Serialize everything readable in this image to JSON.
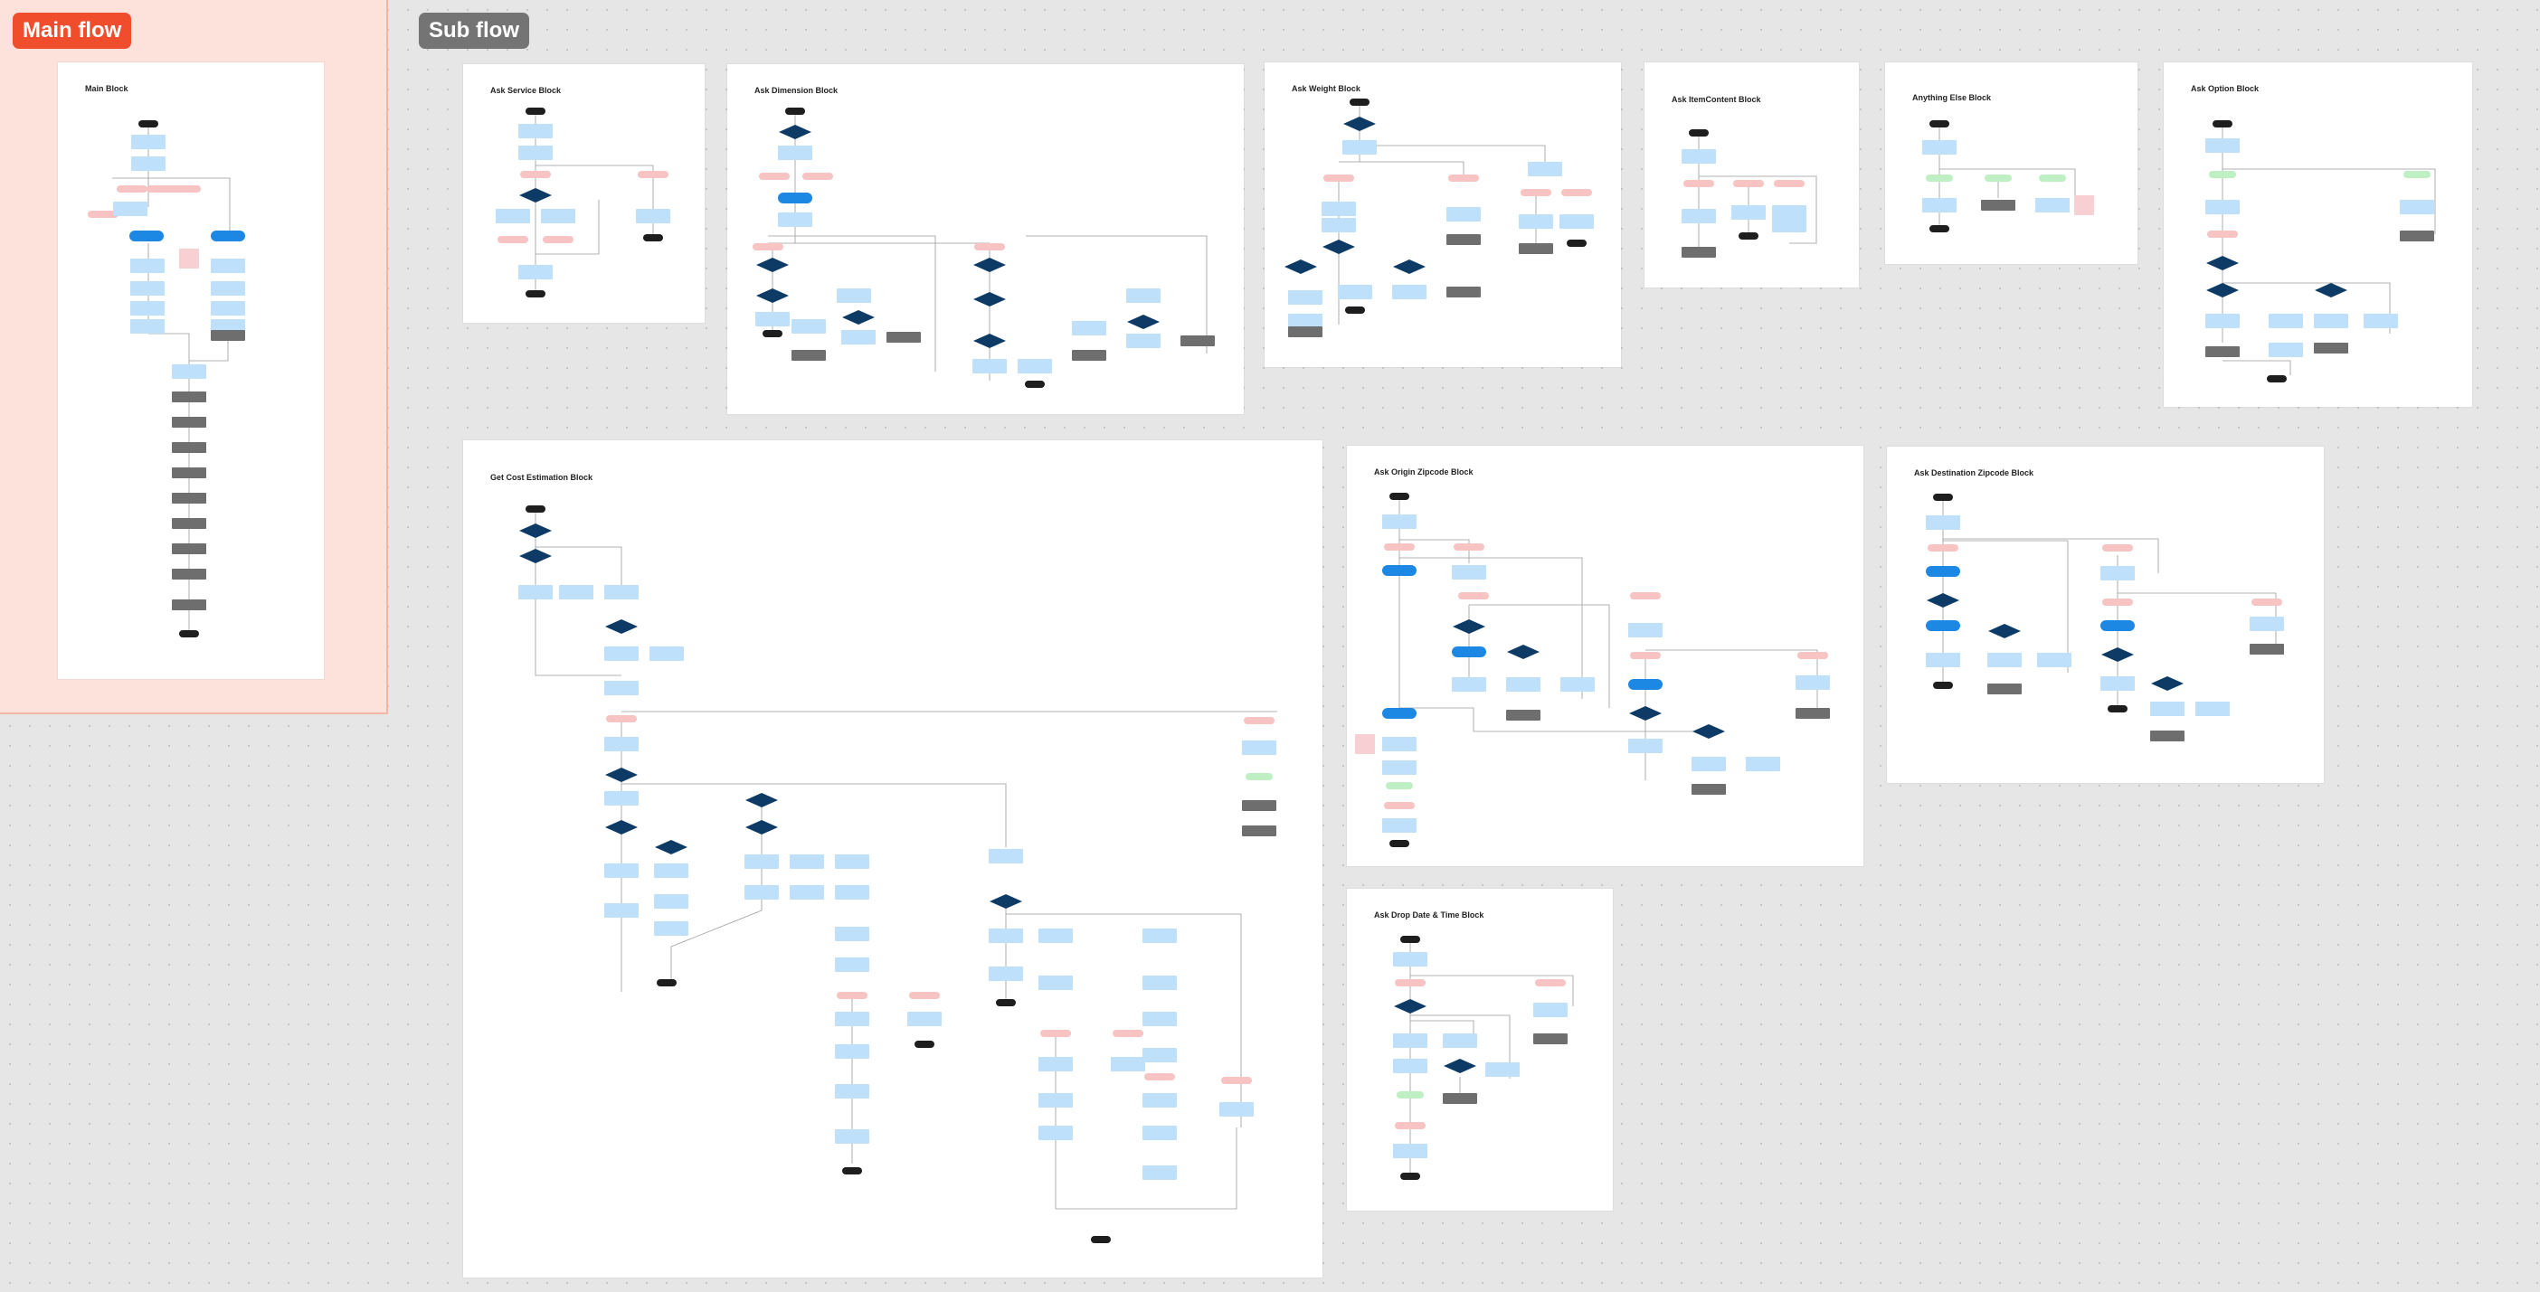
{
  "canvas": {
    "main_section_label": "Main flow",
    "sub_section_label": "Sub flow"
  },
  "colors": {
    "main_tag": "#ef4d2c",
    "sub_tag": "#747474",
    "start_end_node": "#1e1e1e",
    "process_node": "#bfe0fb",
    "condition_node": "#f7c3c3",
    "decision_node": "#0d3b66",
    "action_node": "#1d87e4",
    "terminal_block_node": "#6e6e6e",
    "option_node": "#bff0c3",
    "note_node": "#f8cfd2"
  },
  "frames": [
    {
      "id": "main",
      "title": "Main Block"
    },
    {
      "id": "service",
      "title": "Ask Service Block"
    },
    {
      "id": "dimension",
      "title": "Ask Dimension Block"
    },
    {
      "id": "weight",
      "title": "Ask Weight Block"
    },
    {
      "id": "itemcontent",
      "title": "Ask ItemContent Block"
    },
    {
      "id": "anything",
      "title": "Anything Else Block"
    },
    {
      "id": "option",
      "title": "Ask Option Block"
    },
    {
      "id": "cost",
      "title": "Get Cost Estimation Block"
    },
    {
      "id": "origin",
      "title": "Ask Origin Zipcode Block"
    },
    {
      "id": "destination",
      "title": "Ask Destination Zipcode Block"
    },
    {
      "id": "dropdate",
      "title": "Ask Drop Date & Time Block"
    }
  ]
}
